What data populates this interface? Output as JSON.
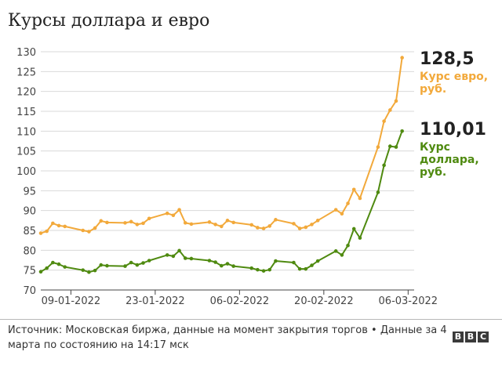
{
  "title": "Курсы доллара и евро",
  "source": "Источник: Московская биржа, данные на момент закрытия торгов • Данные за 4 марта по состоянию на 14:17 мск",
  "logo": [
    "B",
    "B",
    "C"
  ],
  "colors": {
    "euro": "#f2a93b",
    "dollar": "#4f8a10",
    "grid": "#d9d9d9",
    "axis": "#444444"
  },
  "chart_data": {
    "type": "line",
    "ylim": [
      70,
      130
    ],
    "yticks": [
      70,
      75,
      80,
      85,
      90,
      95,
      100,
      105,
      110,
      115,
      120,
      125,
      130
    ],
    "xlim": [
      "2022-01-04",
      "2022-03-07"
    ],
    "xticks": [
      {
        "date": "2022-01-09",
        "label": "09-01-2022"
      },
      {
        "date": "2022-01-23",
        "label": "23-01-2022"
      },
      {
        "date": "2022-02-06",
        "label": "06-02-2022"
      },
      {
        "date": "2022-02-20",
        "label": "20-02-2022"
      },
      {
        "date": "2022-03-06",
        "label": "06-03-2022"
      }
    ],
    "series": [
      {
        "name": "Курс евро, руб.",
        "name_lines": [
          "Курс евро,",
          "руб."
        ],
        "last_label": "128,5",
        "points": [
          [
            "2022-01-04",
            84.3
          ],
          [
            "2022-01-05",
            84.8
          ],
          [
            "2022-01-06",
            86.8
          ],
          [
            "2022-01-07",
            86.2
          ],
          [
            "2022-01-08",
            86.0
          ],
          [
            "2022-01-11",
            85.0
          ],
          [
            "2022-01-12",
            84.7
          ],
          [
            "2022-01-13",
            85.6
          ],
          [
            "2022-01-14",
            87.4
          ],
          [
            "2022-01-15",
            87.0
          ],
          [
            "2022-01-18",
            86.9
          ],
          [
            "2022-01-19",
            87.2
          ],
          [
            "2022-01-20",
            86.5
          ],
          [
            "2022-01-21",
            86.8
          ],
          [
            "2022-01-22",
            88.0
          ],
          [
            "2022-01-25",
            89.3
          ],
          [
            "2022-01-26",
            88.8
          ],
          [
            "2022-01-27",
            90.2
          ],
          [
            "2022-01-28",
            86.9
          ],
          [
            "2022-01-29",
            86.6
          ],
          [
            "2022-02-01",
            87.1
          ],
          [
            "2022-02-02",
            86.5
          ],
          [
            "2022-02-03",
            86.0
          ],
          [
            "2022-02-04",
            87.5
          ],
          [
            "2022-02-05",
            87.0
          ],
          [
            "2022-02-08",
            86.4
          ],
          [
            "2022-02-09",
            85.7
          ],
          [
            "2022-02-10",
            85.5
          ],
          [
            "2022-02-11",
            86.1
          ],
          [
            "2022-02-12",
            87.7
          ],
          [
            "2022-02-15",
            86.7
          ],
          [
            "2022-02-16",
            85.5
          ],
          [
            "2022-02-17",
            85.8
          ],
          [
            "2022-02-18",
            86.5
          ],
          [
            "2022-02-19",
            87.5
          ],
          [
            "2022-02-22",
            90.2
          ],
          [
            "2022-02-23",
            89.2
          ],
          [
            "2022-02-24",
            91.8
          ],
          [
            "2022-02-25",
            95.3
          ],
          [
            "2022-02-26",
            93.1
          ],
          [
            "2022-03-01",
            106.0
          ],
          [
            "2022-03-02",
            112.5
          ],
          [
            "2022-03-03",
            115.3
          ],
          [
            "2022-03-04",
            117.6
          ],
          [
            "2022-03-05",
            128.5
          ]
        ]
      },
      {
        "name": "Курс доллара, руб.",
        "name_lines": [
          "Курс",
          "доллара,",
          "руб."
        ],
        "last_label": "110,01",
        "points": [
          [
            "2022-01-04",
            74.6
          ],
          [
            "2022-01-05",
            75.5
          ],
          [
            "2022-01-06",
            76.9
          ],
          [
            "2022-01-07",
            76.5
          ],
          [
            "2022-01-08",
            75.8
          ],
          [
            "2022-01-11",
            75.0
          ],
          [
            "2022-01-12",
            74.5
          ],
          [
            "2022-01-13",
            74.9
          ],
          [
            "2022-01-14",
            76.3
          ],
          [
            "2022-01-15",
            76.1
          ],
          [
            "2022-01-18",
            76.0
          ],
          [
            "2022-01-19",
            76.9
          ],
          [
            "2022-01-20",
            76.3
          ],
          [
            "2022-01-21",
            76.8
          ],
          [
            "2022-01-22",
            77.4
          ],
          [
            "2022-01-25",
            78.8
          ],
          [
            "2022-01-26",
            78.5
          ],
          [
            "2022-01-27",
            79.9
          ],
          [
            "2022-01-28",
            78.0
          ],
          [
            "2022-01-29",
            77.9
          ],
          [
            "2022-02-01",
            77.4
          ],
          [
            "2022-02-02",
            77.0
          ],
          [
            "2022-02-03",
            76.1
          ],
          [
            "2022-02-04",
            76.6
          ],
          [
            "2022-02-05",
            76.0
          ],
          [
            "2022-02-08",
            75.5
          ],
          [
            "2022-02-09",
            75.1
          ],
          [
            "2022-02-10",
            74.8
          ],
          [
            "2022-02-11",
            75.1
          ],
          [
            "2022-02-12",
            77.3
          ],
          [
            "2022-02-15",
            76.9
          ],
          [
            "2022-02-16",
            75.3
          ],
          [
            "2022-02-17",
            75.3
          ],
          [
            "2022-02-18",
            76.2
          ],
          [
            "2022-02-19",
            77.3
          ],
          [
            "2022-02-22",
            79.8
          ],
          [
            "2022-02-23",
            78.8
          ],
          [
            "2022-02-24",
            81.2
          ],
          [
            "2022-02-25",
            85.4
          ],
          [
            "2022-02-26",
            83.1
          ],
          [
            "2022-03-01",
            94.6
          ],
          [
            "2022-03-02",
            101.4
          ],
          [
            "2022-03-03",
            106.2
          ],
          [
            "2022-03-04",
            106.0
          ],
          [
            "2022-03-05",
            110.01
          ]
        ]
      }
    ]
  }
}
